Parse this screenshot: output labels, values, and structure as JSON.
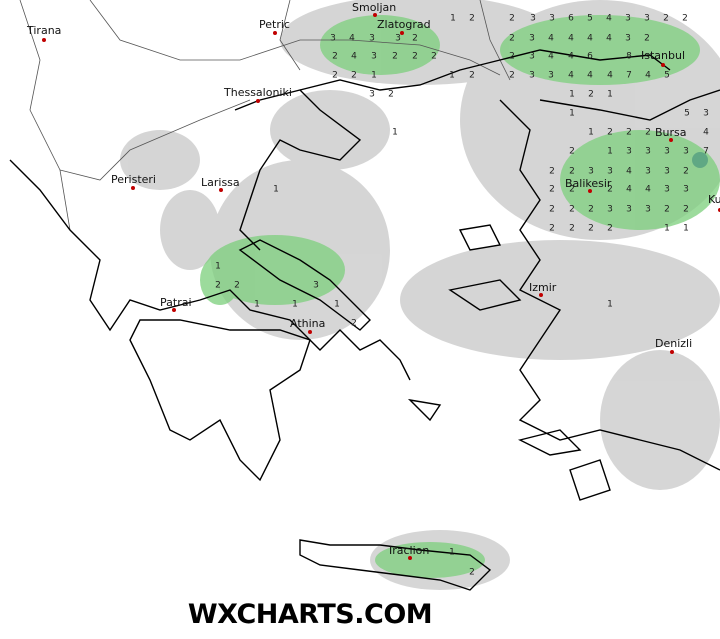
{
  "cities": [
    {
      "name": "Tirana"
    },
    {
      "name": "Petric"
    },
    {
      "name": "Smoljan"
    },
    {
      "name": "Zlatograd"
    },
    {
      "name": "Thessaloniki"
    },
    {
      "name": "Peristeri"
    },
    {
      "name": "Larissa"
    },
    {
      "name": "Patrai"
    },
    {
      "name": "Athina"
    },
    {
      "name": "Izmir"
    },
    {
      "name": "Istanbul"
    },
    {
      "name": "Bursa"
    },
    {
      "name": "Balikesir"
    },
    {
      "name": "Denizli"
    },
    {
      "name": "Iraclion"
    },
    {
      "name": "Ku"
    }
  ],
  "precipitation_labels": [
    1,
    2,
    2,
    3,
    3,
    6,
    5,
    4,
    3,
    3,
    2,
    2,
    3,
    4,
    3,
    3,
    2,
    2,
    3,
    4,
    4,
    4,
    4,
    3,
    2,
    2,
    4,
    3,
    2,
    2,
    2,
    2,
    3,
    4,
    4,
    6,
    8,
    2,
    2,
    1,
    1,
    2,
    2,
    3,
    3,
    4,
    4,
    4,
    7,
    4,
    5,
    3,
    2,
    1,
    2,
    1,
    1,
    5,
    3,
    1,
    1,
    2,
    2,
    2,
    4,
    2,
    1,
    3,
    3,
    3,
    3,
    7,
    2,
    2,
    3,
    3,
    4,
    3,
    3,
    2,
    1,
    2,
    2,
    2,
    4,
    4,
    3,
    3,
    2,
    2,
    2,
    3,
    3,
    3,
    2,
    2,
    2,
    2,
    2,
    2,
    1,
    1,
    1,
    2,
    2,
    3,
    1,
    1,
    1,
    1,
    2,
    1,
    2
  ],
  "watermark": "WXCHARTS.COM"
}
